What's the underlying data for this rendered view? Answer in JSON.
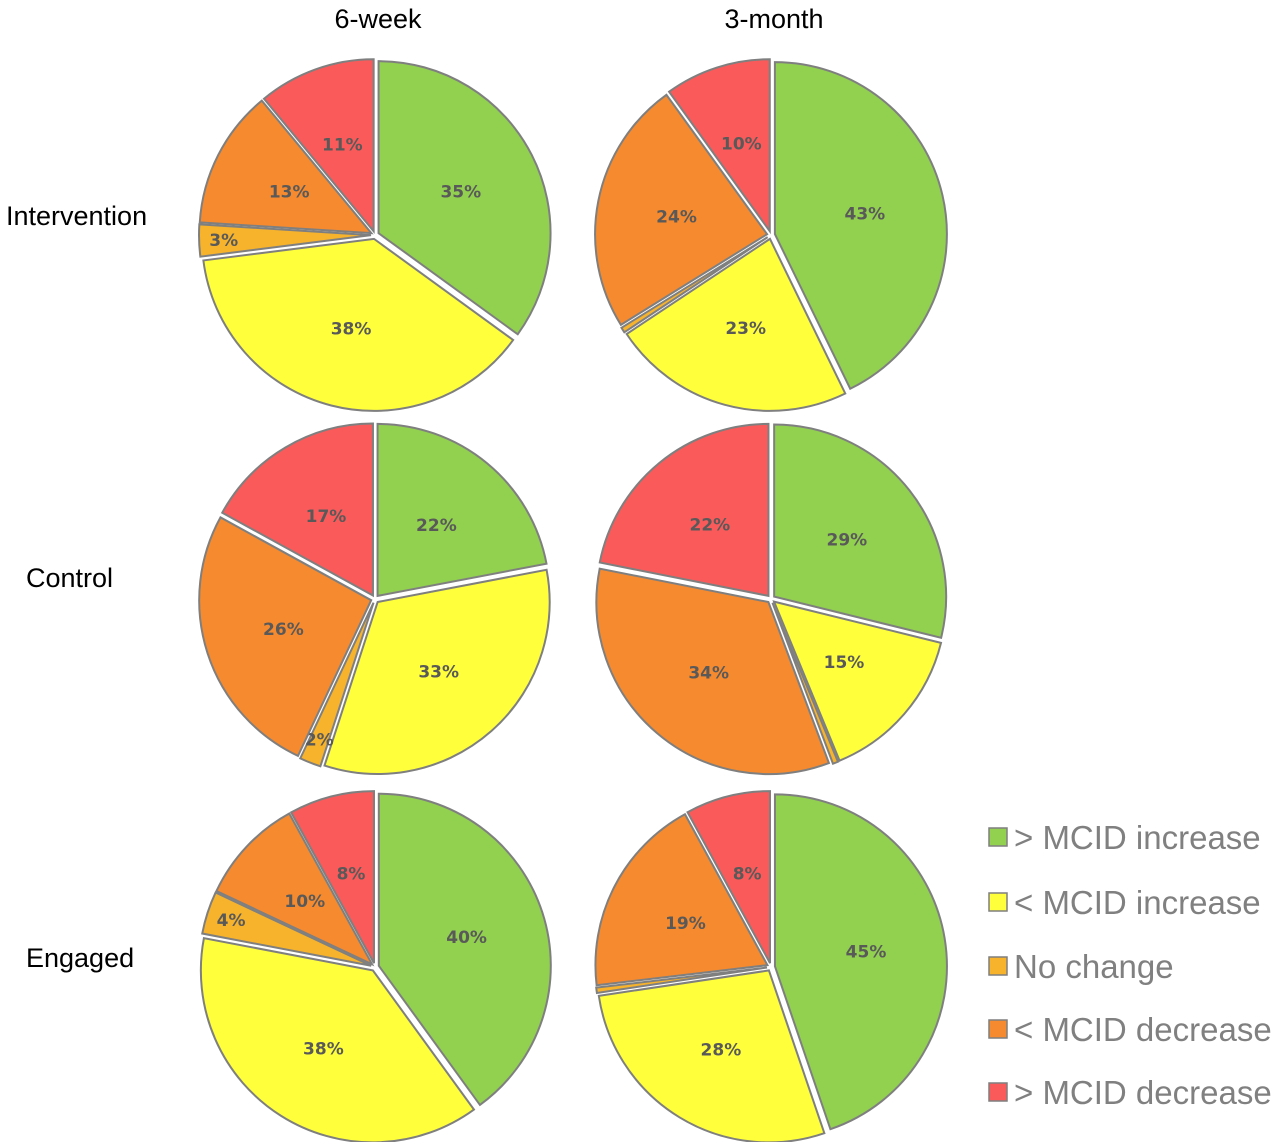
{
  "categories": [
    "> MCID increase",
    "< MCID increase",
    "No change",
    "< MCID decrease",
    "> MCID decrease"
  ],
  "colors": {
    "> MCID increase": "#92d050",
    "< MCID increase": "#ffff3c",
    "No change": "#f7b32b",
    "< MCID decrease": "#f68a2e",
    "> MCID decrease": "#fb5a5a"
  },
  "columns": [
    "6-week",
    "3-month"
  ],
  "rows": [
    "Intervention",
    "Control",
    "Engaged"
  ],
  "chart_data": [
    {
      "type": "pie",
      "row": "Intervention",
      "column": "6-week",
      "values": [
        35,
        38,
        3,
        13,
        11
      ],
      "labels": [
        "35%",
        "38%",
        "3%",
        "13%",
        "11%"
      ]
    },
    {
      "type": "pie",
      "row": "Intervention",
      "column": "3-month",
      "values": [
        43,
        23,
        0.5,
        24,
        10
      ],
      "labels": [
        "43%",
        "23%",
        "",
        "24%",
        "10%"
      ]
    },
    {
      "type": "pie",
      "row": "Control",
      "column": "6-week",
      "values": [
        22,
        33,
        2,
        26,
        17
      ],
      "labels": [
        "22%",
        "33%",
        "2%",
        "26%",
        "17%"
      ]
    },
    {
      "type": "pie",
      "row": "Control",
      "column": "3-month",
      "values": [
        29,
        15,
        0.5,
        34,
        22
      ],
      "labels": [
        "29%",
        "15%",
        "",
        "34%",
        "22%"
      ]
    },
    {
      "type": "pie",
      "row": "Engaged",
      "column": "6-week",
      "values": [
        40,
        38,
        4,
        10,
        8
      ],
      "labels": [
        "40%",
        "38%",
        "4%",
        "10%",
        "8%"
      ]
    },
    {
      "type": "pie",
      "row": "Engaged",
      "column": "3-month",
      "values": [
        45,
        28,
        0.5,
        19,
        8
      ],
      "labels": [
        "45%",
        "28%",
        "",
        "19%",
        "8%"
      ]
    }
  ],
  "legend": {
    "position": "bottom-right"
  }
}
